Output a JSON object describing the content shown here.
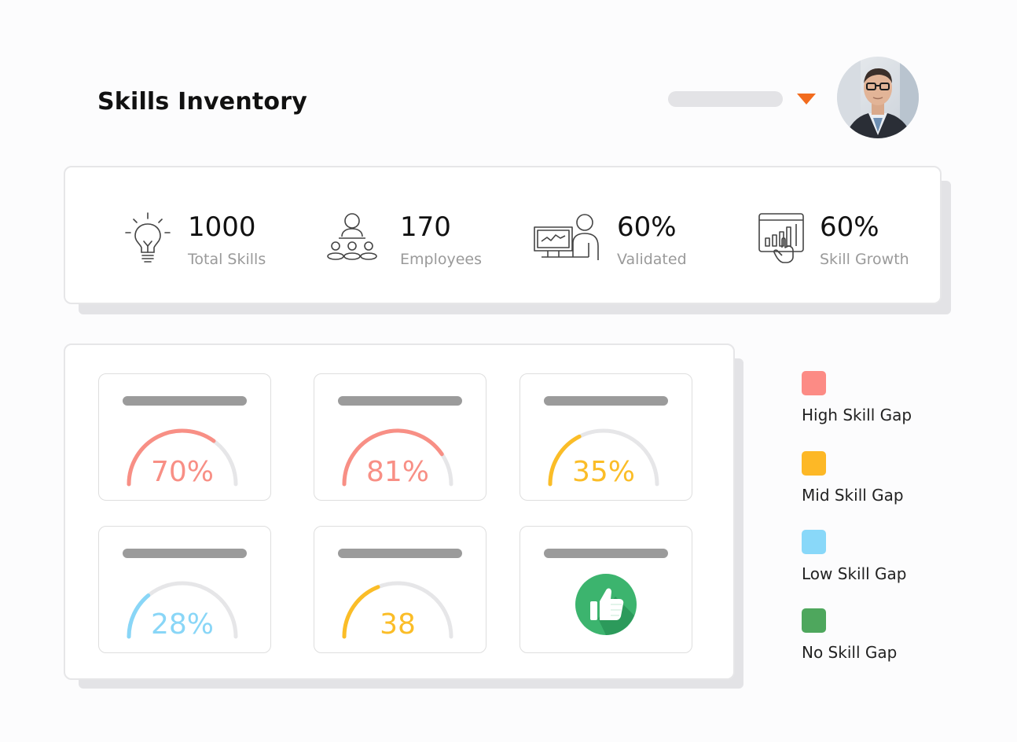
{
  "header": {
    "title": "Skills Inventory",
    "dropdown_icon": "caret-down-icon",
    "accent_color": "#f26b1d"
  },
  "stats": [
    {
      "icon": "lightbulb-icon",
      "value": "1000",
      "label": "Total Skills"
    },
    {
      "icon": "team-icon",
      "value": "170",
      "label": "Employees"
    },
    {
      "icon": "workstation-user-icon",
      "value": "60%",
      "label": "Validated"
    },
    {
      "icon": "growth-chart-touch-icon",
      "value": "60%",
      "label": "Skill Growth"
    }
  ],
  "gauges": [
    {
      "value_text": "70%",
      "fraction": 0.7,
      "color": "#f88f85"
    },
    {
      "value_text": "81%",
      "fraction": 0.81,
      "color": "#f88f85"
    },
    {
      "value_text": "35%",
      "fraction": 0.35,
      "color": "#fbbd27"
    },
    {
      "value_text": "28%",
      "fraction": 0.28,
      "color": "#89d6f7"
    },
    {
      "value_text": "38",
      "fraction": 0.38,
      "color": "#fbbd27"
    },
    {
      "value_text": "",
      "icon": "thumbs-up-icon",
      "color": "#3cb46e"
    }
  ],
  "legend": [
    {
      "label": "High Skill Gap",
      "color": "#fc8b85"
    },
    {
      "label": "Mid Skill Gap",
      "color": "#fdb826"
    },
    {
      "label": "Low Skill Gap",
      "color": "#89d8f9"
    },
    {
      "label": "No Skill Gap",
      "color": "#4ea75d"
    }
  ]
}
